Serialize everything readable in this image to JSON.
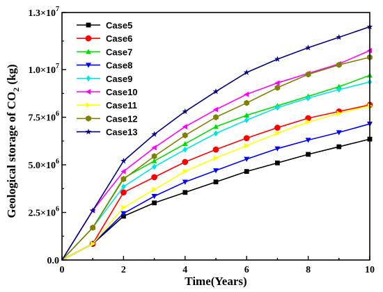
{
  "chart_data": {
    "type": "line",
    "xlabel": "Time(Years)",
    "ylabel_main": "Geological storage of CO",
    "ylabel_sub": "2",
    "ylabel_unit": " (kg)",
    "xlim": [
      0,
      10
    ],
    "ylim": [
      0,
      13000000
    ],
    "x_ticks": [
      "0",
      "2",
      "4",
      "6",
      "8",
      "10"
    ],
    "x_tick_values": [
      0,
      2,
      4,
      6,
      8,
      10
    ],
    "y_ticks": [
      {
        "value": 0,
        "label": "0.0",
        "exp": ""
      },
      {
        "value": 2500000,
        "label": "2.5×10",
        "exp": "6"
      },
      {
        "value": 5000000,
        "label": "5.0×10",
        "exp": "6"
      },
      {
        "value": 7500000,
        "label": "7.5×10",
        "exp": "6"
      },
      {
        "value": 10000000,
        "label": "1.0×10",
        "exp": "7"
      },
      {
        "value": 13000000,
        "label": "1.3×10",
        "exp": "7"
      }
    ],
    "legend_position": "top-left",
    "grid": false,
    "x": [
      0,
      1,
      2,
      3,
      4,
      5,
      6,
      7,
      8,
      9,
      10
    ],
    "series": [
      {
        "name": "Case5",
        "color": "#000000",
        "marker": "square",
        "values": [
          0,
          850000,
          2300000,
          3000000,
          3550000,
          4100000,
          4650000,
          5100000,
          5550000,
          5950000,
          6350000
        ]
      },
      {
        "name": "Case6",
        "color": "#ff0000",
        "marker": "circle",
        "values": [
          0,
          850000,
          3550000,
          4350000,
          5150000,
          5800000,
          6400000,
          6950000,
          7450000,
          7800000,
          8150000
        ]
      },
      {
        "name": "Case7",
        "color": "#00dd00",
        "marker": "triangle-up",
        "values": [
          0,
          1700000,
          4300000,
          5200000,
          6100000,
          7000000,
          7600000,
          8100000,
          8600000,
          9100000,
          9700000
        ]
      },
      {
        "name": "Case8",
        "color": "#0000ff",
        "marker": "triangle-down",
        "values": [
          0,
          850000,
          2450000,
          3350000,
          4100000,
          4700000,
          5300000,
          5850000,
          6300000,
          6700000,
          7150000
        ]
      },
      {
        "name": "Case9",
        "color": "#00e5e5",
        "marker": "diamond",
        "values": [
          0,
          1700000,
          3850000,
          4900000,
          5800000,
          6650000,
          7350000,
          8000000,
          8500000,
          8950000,
          9350000
        ]
      },
      {
        "name": "Case10",
        "color": "#ff00ff",
        "marker": "triangle-left",
        "values": [
          0,
          2600000,
          4650000,
          5900000,
          7000000,
          7900000,
          8700000,
          9300000,
          9800000,
          10300000,
          11000000
        ]
      },
      {
        "name": "Case11",
        "color": "#ffff00",
        "marker": "triangle-right",
        "values": [
          0,
          850000,
          2750000,
          3700000,
          4650000,
          5350000,
          6000000,
          6650000,
          7250000,
          7700000,
          8100000
        ]
      },
      {
        "name": "Case12",
        "color": "#808000",
        "marker": "hexagon",
        "values": [
          0,
          1700000,
          4250000,
          5450000,
          6550000,
          7500000,
          8250000,
          9050000,
          9750000,
          10250000,
          10650000
        ]
      },
      {
        "name": "Case13",
        "color": "#000080",
        "marker": "star",
        "values": [
          0,
          2600000,
          5200000,
          6600000,
          7800000,
          8850000,
          9850000,
          10550000,
          11150000,
          11700000,
          12250000
        ]
      }
    ]
  }
}
